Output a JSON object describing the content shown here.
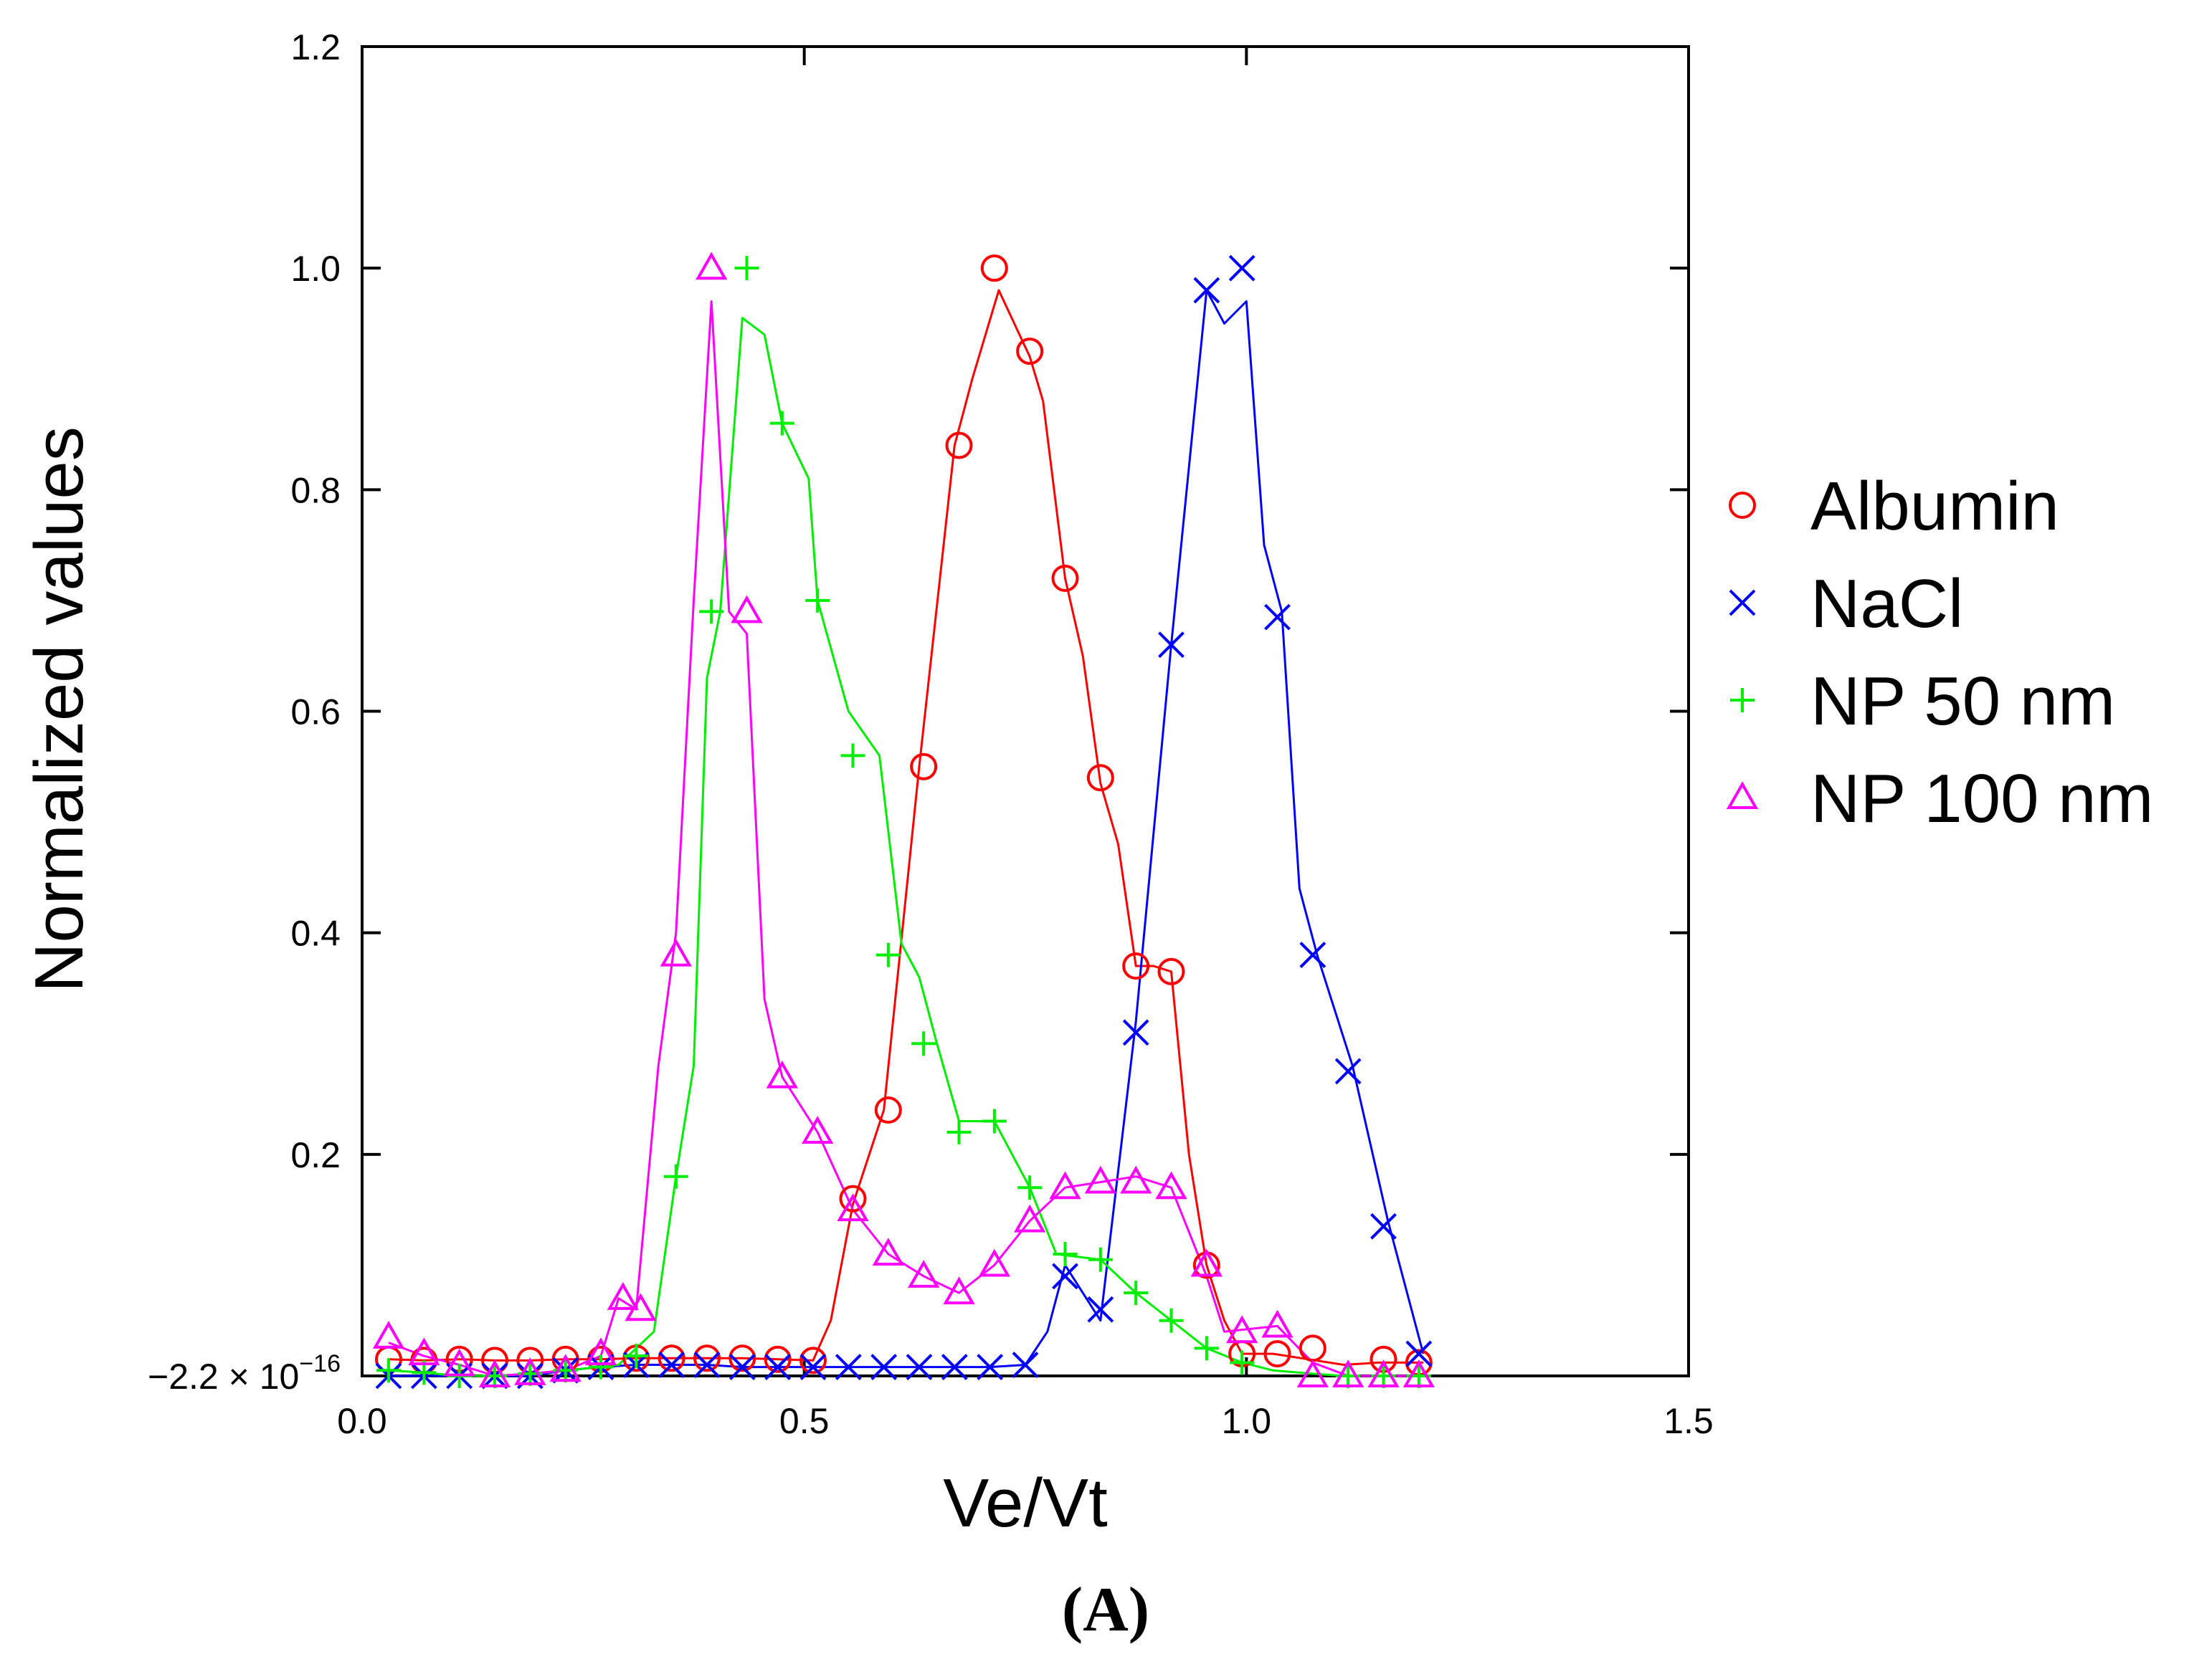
{
  "chart_data": {
    "type": "line",
    "title": "",
    "xlabel": "Ve/Vt",
    "ylabel": "Normalized values",
    "xlim": [
      0.0,
      1.5
    ],
    "ylim": [
      -2.2e-16,
      1.2
    ],
    "xticks": [
      "0.0",
      "0.5",
      "1.0",
      "1.5"
    ],
    "yticks": [
      {
        "value": -2.2e-16,
        "label": "−2.2 × 10",
        "exp": "−16"
      },
      {
        "value": 0.2,
        "label": "0.2"
      },
      {
        "value": 0.4,
        "label": "0.4"
      },
      {
        "value": 0.6,
        "label": "0.6"
      },
      {
        "value": 0.8,
        "label": "0.8"
      },
      {
        "value": 1.0,
        "label": "1.0"
      },
      {
        "value": 1.2,
        "label": "1.2"
      }
    ],
    "grid": false,
    "legend_position": "right",
    "panel_label": "(A)",
    "series": [
      {
        "name": "Albumin",
        "color": "#ff0000",
        "marker": "circle",
        "line": [
          [
            0.03,
            0.015
          ],
          [
            0.07,
            0.014
          ],
          [
            0.11,
            0.015
          ],
          [
            0.15,
            0.014
          ],
          [
            0.19,
            0.014
          ],
          [
            0.23,
            0.015
          ],
          [
            0.27,
            0.015
          ],
          [
            0.31,
            0.016
          ],
          [
            0.35,
            0.016
          ],
          [
            0.39,
            0.016
          ],
          [
            0.43,
            0.016
          ],
          [
            0.47,
            0.015
          ],
          [
            0.51,
            0.014
          ],
          [
            0.53,
            0.05
          ],
          [
            0.555,
            0.155
          ],
          [
            0.59,
            0.24
          ],
          [
            0.63,
            0.55
          ],
          [
            0.67,
            0.84
          ],
          [
            0.69,
            0.9
          ],
          [
            0.72,
            0.98
          ],
          [
            0.755,
            0.92
          ],
          [
            0.77,
            0.88
          ],
          [
            0.795,
            0.72
          ],
          [
            0.815,
            0.65
          ],
          [
            0.835,
            0.535
          ],
          [
            0.855,
            0.48
          ],
          [
            0.875,
            0.37
          ],
          [
            0.895,
            0.37
          ],
          [
            0.915,
            0.365
          ],
          [
            0.935,
            0.2
          ],
          [
            0.955,
            0.1
          ],
          [
            0.975,
            0.05
          ],
          [
            0.995,
            0.02
          ],
          [
            1.03,
            0.02
          ],
          [
            1.07,
            0.015
          ],
          [
            1.11,
            0.01
          ],
          [
            1.15,
            0.012
          ],
          [
            1.2,
            0.012
          ]
        ],
        "points": [
          [
            0.03,
            0.015
          ],
          [
            0.07,
            0.014
          ],
          [
            0.11,
            0.015
          ],
          [
            0.15,
            0.014
          ],
          [
            0.19,
            0.014
          ],
          [
            0.23,
            0.015
          ],
          [
            0.27,
            0.015
          ],
          [
            0.31,
            0.016
          ],
          [
            0.35,
            0.016
          ],
          [
            0.39,
            0.016
          ],
          [
            0.43,
            0.016
          ],
          [
            0.47,
            0.015
          ],
          [
            0.51,
            0.014
          ],
          [
            0.555,
            0.16
          ],
          [
            0.595,
            0.24
          ],
          [
            0.635,
            0.55
          ],
          [
            0.675,
            0.84
          ],
          [
            0.715,
            1.0
          ],
          [
            0.755,
            0.925
          ],
          [
            0.795,
            0.72
          ],
          [
            0.835,
            0.54
          ],
          [
            0.875,
            0.37
          ],
          [
            0.915,
            0.365
          ],
          [
            0.955,
            0.1
          ],
          [
            0.995,
            0.02
          ],
          [
            1.035,
            0.02
          ],
          [
            1.075,
            0.025
          ],
          [
            1.155,
            0.015
          ],
          [
            1.195,
            0.012
          ]
        ]
      },
      {
        "name": "NaCl",
        "color": "#0000ff",
        "marker": "x",
        "line": [
          [
            0.03,
            0.0
          ],
          [
            0.07,
            0.0
          ],
          [
            0.11,
            0.0
          ],
          [
            0.15,
            0.0
          ],
          [
            0.19,
            0.0
          ],
          [
            0.23,
            0.005
          ],
          [
            0.27,
            0.008
          ],
          [
            0.31,
            0.01
          ],
          [
            0.35,
            0.01
          ],
          [
            0.39,
            0.01
          ],
          [
            0.43,
            0.008
          ],
          [
            0.47,
            0.008
          ],
          [
            0.51,
            0.008
          ],
          [
            0.55,
            0.008
          ],
          [
            0.59,
            0.008
          ],
          [
            0.63,
            0.008
          ],
          [
            0.67,
            0.008
          ],
          [
            0.71,
            0.008
          ],
          [
            0.75,
            0.01
          ],
          [
            0.775,
            0.04
          ],
          [
            0.795,
            0.1
          ],
          [
            0.835,
            0.05
          ],
          [
            0.875,
            0.32
          ],
          [
            0.915,
            0.66
          ],
          [
            0.955,
            0.98
          ],
          [
            0.975,
            0.95
          ],
          [
            1.0,
            0.97
          ],
          [
            1.02,
            0.75
          ],
          [
            1.04,
            0.69
          ],
          [
            1.06,
            0.44
          ],
          [
            1.08,
            0.38
          ],
          [
            1.12,
            0.28
          ],
          [
            1.16,
            0.14
          ],
          [
            1.2,
            0.02
          ]
        ],
        "points": [
          [
            0.03,
            0.0
          ],
          [
            0.07,
            0.0
          ],
          [
            0.11,
            0.0
          ],
          [
            0.15,
            0.0
          ],
          [
            0.19,
            0.0
          ],
          [
            0.23,
            0.005
          ],
          [
            0.27,
            0.008
          ],
          [
            0.31,
            0.01
          ],
          [
            0.35,
            0.01
          ],
          [
            0.39,
            0.01
          ],
          [
            0.43,
            0.008
          ],
          [
            0.47,
            0.008
          ],
          [
            0.51,
            0.008
          ],
          [
            0.55,
            0.008
          ],
          [
            0.59,
            0.008
          ],
          [
            0.63,
            0.008
          ],
          [
            0.67,
            0.008
          ],
          [
            0.71,
            0.008
          ],
          [
            0.75,
            0.01
          ],
          [
            0.795,
            0.09
          ],
          [
            0.835,
            0.06
          ],
          [
            0.875,
            0.31
          ],
          [
            0.915,
            0.66
          ],
          [
            0.955,
            0.98
          ],
          [
            0.995,
            1.0
          ],
          [
            1.035,
            0.685
          ],
          [
            1.075,
            0.38
          ],
          [
            1.115,
            0.275
          ],
          [
            1.155,
            0.135
          ],
          [
            1.195,
            0.02
          ]
        ]
      },
      {
        "name": "NP 50 nm",
        "color": "#00ee00",
        "marker": "plus",
        "line": [
          [
            0.03,
            0.005
          ],
          [
            0.07,
            0.003
          ],
          [
            0.11,
            0.0
          ],
          [
            0.15,
            0.0
          ],
          [
            0.19,
            0.002
          ],
          [
            0.23,
            0.005
          ],
          [
            0.27,
            0.008
          ],
          [
            0.29,
            0.01
          ],
          [
            0.31,
            0.025
          ],
          [
            0.33,
            0.04
          ],
          [
            0.355,
            0.18
          ],
          [
            0.375,
            0.28
          ],
          [
            0.39,
            0.63
          ],
          [
            0.405,
            0.69
          ],
          [
            0.43,
            0.955
          ],
          [
            0.455,
            0.94
          ],
          [
            0.475,
            0.86
          ],
          [
            0.505,
            0.81
          ],
          [
            0.515,
            0.7
          ],
          [
            0.55,
            0.6
          ],
          [
            0.585,
            0.56
          ],
          [
            0.61,
            0.39
          ],
          [
            0.63,
            0.36
          ],
          [
            0.65,
            0.3
          ],
          [
            0.675,
            0.23
          ],
          [
            0.715,
            0.23
          ],
          [
            0.735,
            0.2
          ],
          [
            0.755,
            0.17
          ],
          [
            0.785,
            0.11
          ],
          [
            0.835,
            0.105
          ],
          [
            0.875,
            0.075
          ],
          [
            0.915,
            0.05
          ],
          [
            0.955,
            0.025
          ],
          [
            0.995,
            0.012
          ],
          [
            1.03,
            0.005
          ],
          [
            1.075,
            0.002
          ],
          [
            1.11,
            0.0
          ],
          [
            1.155,
            0.0
          ],
          [
            1.2,
            0.0
          ]
        ],
        "points": [
          [
            0.03,
            0.005
          ],
          [
            0.07,
            0.003
          ],
          [
            0.11,
            0.0
          ],
          [
            0.15,
            0.0
          ],
          [
            0.19,
            0.002
          ],
          [
            0.23,
            0.005
          ],
          [
            0.27,
            0.008
          ],
          [
            0.31,
            0.018
          ],
          [
            0.355,
            0.18
          ],
          [
            0.395,
            0.69
          ],
          [
            0.435,
            1.0
          ],
          [
            0.475,
            0.86
          ],
          [
            0.515,
            0.7
          ],
          [
            0.555,
            0.56
          ],
          [
            0.595,
            0.38
          ],
          [
            0.635,
            0.3
          ],
          [
            0.675,
            0.22
          ],
          [
            0.715,
            0.23
          ],
          [
            0.755,
            0.17
          ],
          [
            0.795,
            0.11
          ],
          [
            0.835,
            0.105
          ],
          [
            0.875,
            0.075
          ],
          [
            0.915,
            0.05
          ],
          [
            0.955,
            0.025
          ],
          [
            0.995,
            0.012
          ],
          [
            1.115,
            0.0
          ],
          [
            1.155,
            0.0
          ],
          [
            1.195,
            0.0
          ]
        ]
      },
      {
        "name": "NP 100 nm",
        "color": "#ff00ff",
        "marker": "triangle",
        "line": [
          [
            0.03,
            0.03
          ],
          [
            0.07,
            0.018
          ],
          [
            0.11,
            0.01
          ],
          [
            0.15,
            0.0
          ],
          [
            0.19,
            0.002
          ],
          [
            0.23,
            0.005
          ],
          [
            0.27,
            0.018
          ],
          [
            0.29,
            0.07
          ],
          [
            0.31,
            0.06
          ],
          [
            0.335,
            0.28
          ],
          [
            0.355,
            0.4
          ],
          [
            0.375,
            0.7
          ],
          [
            0.395,
            0.97
          ],
          [
            0.415,
            0.69
          ],
          [
            0.435,
            0.67
          ],
          [
            0.455,
            0.34
          ],
          [
            0.475,
            0.27
          ],
          [
            0.515,
            0.22
          ],
          [
            0.555,
            0.15
          ],
          [
            0.595,
            0.11
          ],
          [
            0.635,
            0.09
          ],
          [
            0.675,
            0.075
          ],
          [
            0.715,
            0.1
          ],
          [
            0.755,
            0.14
          ],
          [
            0.795,
            0.17
          ],
          [
            0.835,
            0.175
          ],
          [
            0.875,
            0.18
          ],
          [
            0.915,
            0.17
          ],
          [
            0.955,
            0.09
          ],
          [
            0.975,
            0.04
          ],
          [
            1.035,
            0.045
          ],
          [
            1.075,
            0.012
          ],
          [
            1.115,
            0.0
          ],
          [
            1.155,
            0.0
          ],
          [
            1.2,
            0.0
          ]
        ],
        "points": [
          [
            0.03,
            0.035
          ],
          [
            0.07,
            0.02
          ],
          [
            0.11,
            0.01
          ],
          [
            0.15,
            0.0
          ],
          [
            0.19,
            0.002
          ],
          [
            0.23,
            0.005
          ],
          [
            0.27,
            0.02
          ],
          [
            0.295,
            0.07
          ],
          [
            0.315,
            0.06
          ],
          [
            0.355,
            0.38
          ],
          [
            0.395,
            1.0
          ],
          [
            0.435,
            0.69
          ],
          [
            0.475,
            0.27
          ],
          [
            0.515,
            0.22
          ],
          [
            0.555,
            0.15
          ],
          [
            0.595,
            0.11
          ],
          [
            0.635,
            0.09
          ],
          [
            0.675,
            0.075
          ],
          [
            0.715,
            0.1
          ],
          [
            0.755,
            0.14
          ],
          [
            0.795,
            0.17
          ],
          [
            0.835,
            0.175
          ],
          [
            0.875,
            0.175
          ],
          [
            0.915,
            0.17
          ],
          [
            0.955,
            0.1
          ],
          [
            0.995,
            0.04
          ],
          [
            1.035,
            0.045
          ],
          [
            1.075,
            0.0
          ],
          [
            1.115,
            0.0
          ],
          [
            1.155,
            0.0
          ],
          [
            1.195,
            0.0
          ]
        ]
      }
    ]
  }
}
